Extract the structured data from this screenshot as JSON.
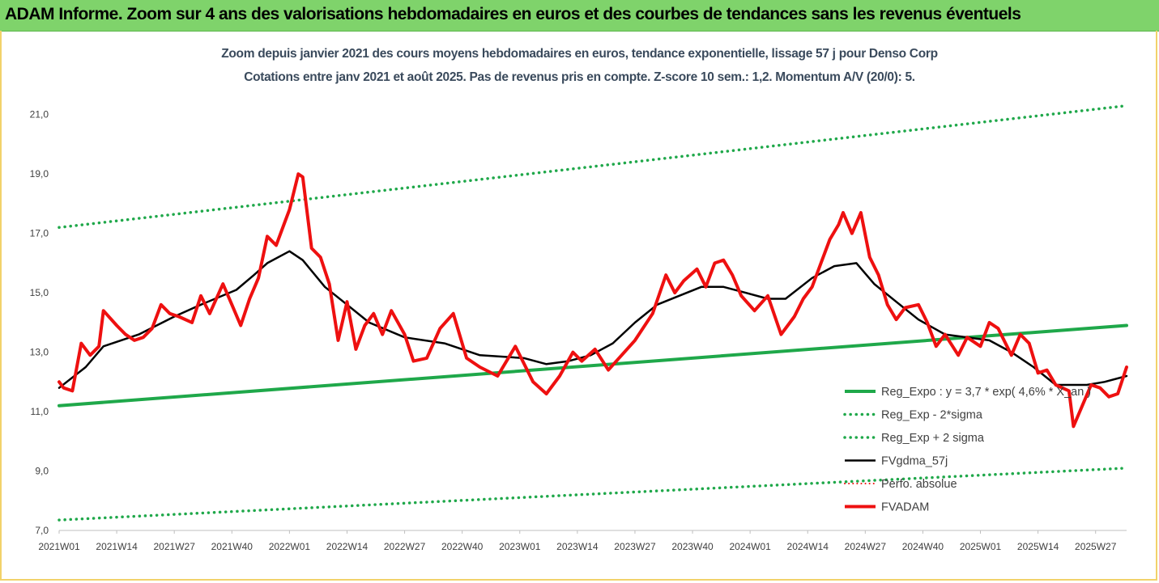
{
  "banner": {
    "title": "ADAM Informe. Zoom sur 4 ans des valorisations hebdomadaires en euros et des courbes de tendances sans les revenus éventuels"
  },
  "colors": {
    "banner_bg": "#7fd36b",
    "trend_green": "#1fa84a",
    "price_red": "#ee1010",
    "smooth_black": "#000000"
  },
  "chart_data": {
    "type": "line",
    "title": "Zoom depuis janvier 2021 des cours moyens hebdomadaires en euros, tendance exponentielle, lissage 57 j pour Denso Corp",
    "subtitle": "Cotations entre janv 2021 et août 2025.  Pas de revenus pris en compte. Z-score 10 sem.: 1,2. Momentum A/V (20/0): 5.",
    "ylim": [
      7,
      22
    ],
    "y_ticks": [
      "7,0",
      "9,0",
      "11,0",
      "13,0",
      "15,0",
      "17,0",
      "19,0",
      "21,0"
    ],
    "x_ticks": [
      "2021W01",
      "2021W14",
      "2021W27",
      "2021W40",
      "2022W01",
      "2022W14",
      "2022W27",
      "2022W40",
      "2023W01",
      "2023W14",
      "2023W27",
      "2023W40",
      "2024W01",
      "2024W14",
      "2024W27",
      "2024W40",
      "2025W01",
      "2025W14",
      "2025W27"
    ],
    "x_start_week": "2021W01",
    "grid": false,
    "legend_position": "right",
    "series": [
      {
        "name": "Reg_Expo : y = 3,7 * exp( 4,6% * X_an )",
        "style": "solid-green",
        "values": [
          [
            0,
            11.2
          ],
          [
            241,
            13.9
          ]
        ]
      },
      {
        "name": "Reg_Exp - 2*sigma",
        "style": "dotted-green",
        "values": [
          [
            0,
            7.35
          ],
          [
            241,
            9.1
          ]
        ]
      },
      {
        "name": "Reg_Exp + 2 sigma",
        "style": "dotted-green",
        "values": [
          [
            0,
            17.2
          ],
          [
            241,
            21.3
          ]
        ]
      },
      {
        "name": "FVgdma_57j",
        "style": "solid-black",
        "values": [
          [
            0,
            11.8
          ],
          [
            6,
            12.5
          ],
          [
            10,
            13.2
          ],
          [
            18,
            13.6
          ],
          [
            26,
            14.2
          ],
          [
            32,
            14.6
          ],
          [
            40,
            15.1
          ],
          [
            44,
            15.6
          ],
          [
            47,
            16.0
          ],
          [
            52,
            16.4
          ],
          [
            55,
            16.1
          ],
          [
            60,
            15.2
          ],
          [
            65,
            14.6
          ],
          [
            70,
            14.0
          ],
          [
            78,
            13.5
          ],
          [
            87,
            13.3
          ],
          [
            95,
            12.9
          ],
          [
            105,
            12.8
          ],
          [
            110,
            12.6
          ],
          [
            115,
            12.7
          ],
          [
            120,
            12.9
          ],
          [
            125,
            13.3
          ],
          [
            130,
            14.0
          ],
          [
            135,
            14.6
          ],
          [
            140,
            14.9
          ],
          [
            145,
            15.2
          ],
          [
            150,
            15.2
          ],
          [
            155,
            15.0
          ],
          [
            160,
            14.8
          ],
          [
            164,
            14.8
          ],
          [
            170,
            15.5
          ],
          [
            175,
            15.9
          ],
          [
            180,
            16.0
          ],
          [
            184,
            15.3
          ],
          [
            189,
            14.7
          ],
          [
            194,
            14.1
          ],
          [
            200,
            13.6
          ],
          [
            205,
            13.5
          ],
          [
            210,
            13.4
          ],
          [
            215,
            13.0
          ],
          [
            220,
            12.5
          ],
          [
            225,
            11.9
          ],
          [
            232,
            11.9
          ],
          [
            236,
            12.0
          ],
          [
            241,
            12.2
          ]
        ]
      },
      {
        "name": "Perfo. absolue",
        "style": "dotted-red",
        "values": []
      },
      {
        "name": "FVADAM",
        "style": "solid-red",
        "values": [
          [
            0,
            12.0
          ],
          [
            1,
            11.8
          ],
          [
            3,
            11.7
          ],
          [
            5,
            13.3
          ],
          [
            7,
            12.9
          ],
          [
            9,
            13.2
          ],
          [
            10,
            14.4
          ],
          [
            13,
            13.9
          ],
          [
            15,
            13.6
          ],
          [
            17,
            13.4
          ],
          [
            19,
            13.5
          ],
          [
            21,
            13.8
          ],
          [
            23,
            14.6
          ],
          [
            25,
            14.3
          ],
          [
            27,
            14.2
          ],
          [
            30,
            14.0
          ],
          [
            32,
            14.9
          ],
          [
            34,
            14.3
          ],
          [
            37,
            15.3
          ],
          [
            39,
            14.6
          ],
          [
            41,
            13.9
          ],
          [
            43,
            14.8
          ],
          [
            45,
            15.5
          ],
          [
            47,
            16.9
          ],
          [
            49,
            16.6
          ],
          [
            51,
            17.4
          ],
          [
            52,
            17.8
          ],
          [
            54,
            19.0
          ],
          [
            55,
            18.9
          ],
          [
            57,
            16.5
          ],
          [
            59,
            16.2
          ],
          [
            61,
            15.3
          ],
          [
            63,
            13.4
          ],
          [
            65,
            14.7
          ],
          [
            67,
            13.1
          ],
          [
            69,
            13.9
          ],
          [
            71,
            14.3
          ],
          [
            73,
            13.6
          ],
          [
            75,
            14.4
          ],
          [
            78,
            13.6
          ],
          [
            80,
            12.7
          ],
          [
            83,
            12.8
          ],
          [
            86,
            13.8
          ],
          [
            89,
            14.3
          ],
          [
            92,
            12.8
          ],
          [
            95,
            12.5
          ],
          [
            99,
            12.2
          ],
          [
            103,
            13.2
          ],
          [
            107,
            12.0
          ],
          [
            110,
            11.6
          ],
          [
            113,
            12.2
          ],
          [
            116,
            13.0
          ],
          [
            118,
            12.7
          ],
          [
            121,
            13.1
          ],
          [
            124,
            12.4
          ],
          [
            127,
            12.9
          ],
          [
            130,
            13.4
          ],
          [
            134,
            14.3
          ],
          [
            137,
            15.6
          ],
          [
            139,
            15.0
          ],
          [
            141,
            15.4
          ],
          [
            144,
            15.8
          ],
          [
            146,
            15.2
          ],
          [
            148,
            16.0
          ],
          [
            150,
            16.1
          ],
          [
            152,
            15.6
          ],
          [
            154,
            14.9
          ],
          [
            157,
            14.4
          ],
          [
            160,
            14.9
          ],
          [
            163,
            13.6
          ],
          [
            166,
            14.2
          ],
          [
            168,
            14.8
          ],
          [
            170,
            15.2
          ],
          [
            172,
            16.0
          ],
          [
            174,
            16.8
          ],
          [
            176,
            17.3
          ],
          [
            177,
            17.7
          ],
          [
            179,
            17.0
          ],
          [
            181,
            17.7
          ],
          [
            183,
            16.2
          ],
          [
            185,
            15.6
          ],
          [
            187,
            14.6
          ],
          [
            189,
            14.1
          ],
          [
            191,
            14.5
          ],
          [
            194,
            14.6
          ],
          [
            196,
            14.0
          ],
          [
            198,
            13.2
          ],
          [
            200,
            13.6
          ],
          [
            203,
            12.9
          ],
          [
            205,
            13.5
          ],
          [
            208,
            13.2
          ],
          [
            210,
            14.0
          ],
          [
            212,
            13.8
          ],
          [
            215,
            12.9
          ],
          [
            217,
            13.6
          ],
          [
            219,
            13.3
          ],
          [
            221,
            12.3
          ],
          [
            223,
            12.4
          ],
          [
            225,
            11.9
          ],
          [
            228,
            11.7
          ],
          [
            229,
            10.5
          ],
          [
            231,
            11.2
          ],
          [
            233,
            11.9
          ],
          [
            235,
            11.8
          ],
          [
            237,
            11.5
          ],
          [
            239,
            11.6
          ],
          [
            241,
            12.5
          ]
        ]
      }
    ]
  }
}
